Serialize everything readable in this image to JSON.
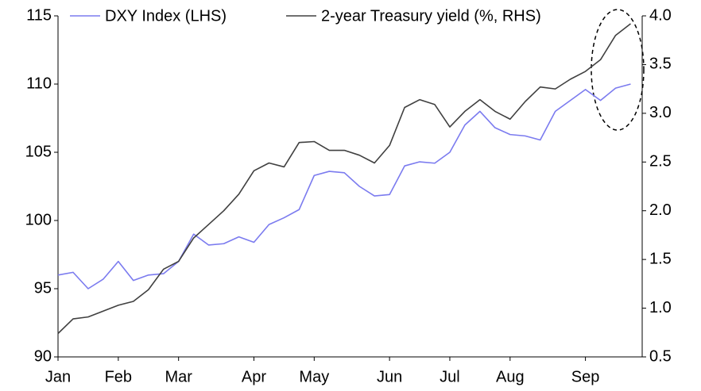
{
  "chart_data": {
    "type": "line",
    "categories": [
      "Jan",
      null,
      null,
      null,
      "Feb",
      null,
      null,
      null,
      "Mar",
      null,
      null,
      null,
      null,
      "Apr",
      null,
      null,
      null,
      "May",
      null,
      null,
      null,
      null,
      "Jun",
      null,
      null,
      null,
      "Jul",
      null,
      null,
      null,
      "Aug",
      null,
      null,
      null,
      null,
      "Sep",
      null,
      null,
      null
    ],
    "series": [
      {
        "name": "DXY Index (LHS)",
        "color": "#7b7bef",
        "axis": "y",
        "values": [
          96.0,
          96.2,
          95.0,
          95.7,
          97.0,
          95.6,
          96.0,
          96.1,
          97.0,
          99.0,
          98.2,
          98.3,
          98.8,
          98.4,
          99.7,
          100.2,
          100.8,
          103.3,
          103.6,
          103.5,
          102.5,
          101.8,
          101.9,
          104.0,
          104.3,
          104.2,
          105.0,
          107.0,
          108.0,
          106.8,
          106.3,
          106.2,
          105.9,
          108.0,
          108.8,
          109.6,
          108.8,
          109.7,
          110.0
        ]
      },
      {
        "name": "2-year Treasury yield (%, RHS)",
        "color": "#404040",
        "axis": "y2",
        "values": [
          0.74,
          0.89,
          0.91,
          0.97,
          1.03,
          1.07,
          1.19,
          1.4,
          1.48,
          1.72,
          1.86,
          2.0,
          2.17,
          2.41,
          2.49,
          2.45,
          2.7,
          2.71,
          2.62,
          2.62,
          2.57,
          2.49,
          2.67,
          3.06,
          3.14,
          3.09,
          2.86,
          3.02,
          3.14,
          3.02,
          2.94,
          3.12,
          3.27,
          3.25,
          3.35,
          3.43,
          3.55,
          3.8,
          3.92
        ]
      }
    ],
    "ylim": [
      90,
      115
    ],
    "yticks": [
      90,
      95,
      100,
      105,
      110,
      115
    ],
    "y2lim": [
      0.5,
      4.0
    ],
    "y2ticks": [
      0.5,
      {
        "value": 1,
        "label": "1.0"
      },
      1.5,
      {
        "value": 2,
        "label": "2.0"
      },
      2.5,
      {
        "value": 3,
        "label": "3.0"
      },
      3.5,
      {
        "value": 4,
        "label": "4.0"
      }
    ]
  }
}
